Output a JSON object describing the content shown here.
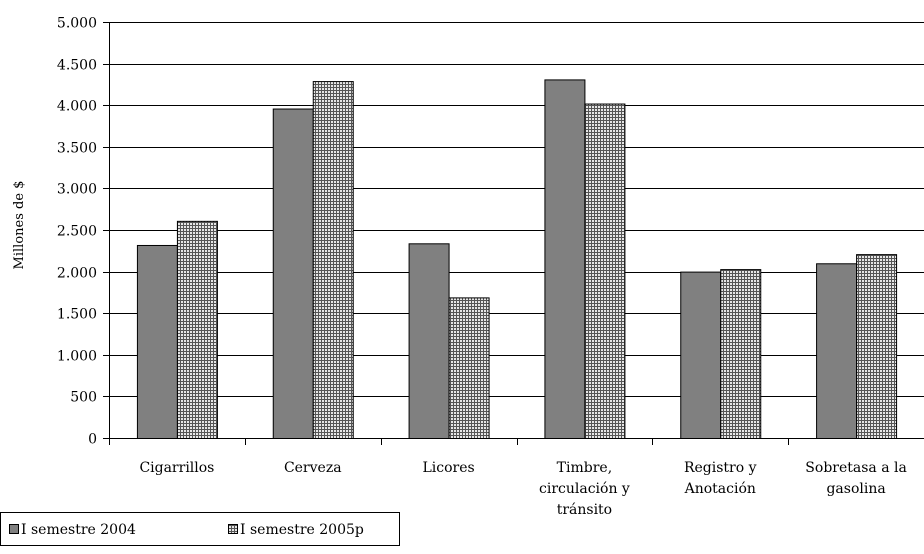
{
  "chart_data": {
    "type": "bar",
    "title": "",
    "xlabel": "",
    "ylabel": "Millones de $",
    "ylim": [
      0,
      5000
    ],
    "yticks": [
      0,
      500,
      1000,
      1500,
      2000,
      2500,
      3000,
      3500,
      4000,
      4500,
      5000
    ],
    "ytick_labels": [
      "0",
      "500",
      "1.000",
      "1.500",
      "2.000",
      "2.500",
      "3.000",
      "3.500",
      "4.000",
      "4.500",
      "5.000"
    ],
    "grid": true,
    "legend_position": "bottom-left",
    "categories": [
      [
        "Cigarrillos"
      ],
      [
        "Cerveza"
      ],
      [
        "Licores"
      ],
      [
        "Timbre,",
        "circulación y",
        "tránsito"
      ],
      [
        "Registro y",
        "Anotación"
      ],
      [
        "Sobretasa a la",
        "gasolina"
      ]
    ],
    "series": [
      {
        "name": "I semestre 2004",
        "values": [
          2320,
          3960,
          2340,
          4310,
          2000,
          2100
        ],
        "color": "#808080",
        "pattern": "solid"
      },
      {
        "name": "I semestre 2005p",
        "values": [
          2610,
          4290,
          1690,
          4020,
          2030,
          2210
        ],
        "color": "#b0b0b0",
        "pattern": "grid"
      }
    ]
  }
}
